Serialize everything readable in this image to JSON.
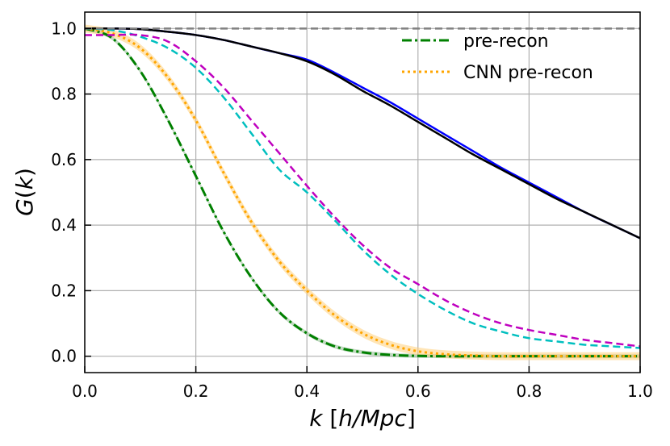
{
  "chart_data": {
    "type": "line",
    "xlabel": {
      "k": "k",
      "open": " [",
      "unit": "h/Mpc",
      "close": "]"
    },
    "ylabel": {
      "g": "G",
      "open": "(",
      "k": "k",
      "close": ")"
    },
    "xlim": [
      0.0,
      1.0
    ],
    "ylim": [
      -0.05,
      1.05
    ],
    "grid": true,
    "legend_position": "top-right",
    "x_ticks": [
      "0.0",
      "0.2",
      "0.4",
      "0.6",
      "0.8",
      "1.0"
    ],
    "y_ticks": [
      "0.0",
      "0.2",
      "0.4",
      "0.6",
      "0.8",
      "1.0"
    ],
    "x_tick_values": [
      0.0,
      0.2,
      0.4,
      0.6,
      0.8,
      1.0
    ],
    "y_tick_values": [
      0.0,
      0.2,
      0.4,
      0.6,
      0.8,
      1.0
    ],
    "legend": [
      {
        "label": "pre-recon",
        "series": 0
      },
      {
        "label": "CNN pre-recon",
        "series": 1
      }
    ],
    "x": [
      0.0,
      0.05,
      0.1,
      0.15,
      0.2,
      0.25,
      0.3,
      0.35,
      0.4,
      0.45,
      0.5,
      0.55,
      0.6,
      0.65,
      0.7,
      0.75,
      0.8,
      0.85,
      0.9,
      0.95,
      1.0
    ],
    "series": [
      {
        "color": "#008000",
        "dash": "12,4,3,4",
        "width": 3,
        "values": [
          1.0,
          0.97,
          0.87,
          0.72,
          0.55,
          0.38,
          0.24,
          0.135,
          0.07,
          0.03,
          0.012,
          0.004,
          0.001,
          0.0,
          0.0,
          0.0,
          0.0,
          0.0,
          0.0,
          0.0,
          0.0
        ],
        "band": 0.006,
        "band_color": "#8fbc8f"
      },
      {
        "color": "#ffa500",
        "dash": "3,4",
        "width": 3,
        "values": [
          1.0,
          0.985,
          0.94,
          0.85,
          0.72,
          0.56,
          0.41,
          0.29,
          0.2,
          0.125,
          0.07,
          0.035,
          0.015,
          0.006,
          0.002,
          0.0,
          0.0,
          0.0,
          0.0,
          0.0,
          0.0
        ],
        "band": 0.012,
        "band_color": "#ffcf7a"
      },
      {
        "color": "#00bfbf",
        "dash": "9,5",
        "width": 2.5,
        "values": [
          1.0,
          0.995,
          0.975,
          0.94,
          0.88,
          0.79,
          0.68,
          0.57,
          0.5,
          0.415,
          0.325,
          0.25,
          0.19,
          0.14,
          0.1,
          0.075,
          0.055,
          0.045,
          0.035,
          0.03,
          0.025
        ]
      },
      {
        "color": "#bf00bf",
        "dash": "9,5",
        "width": 2.5,
        "values": [
          0.98,
          0.98,
          0.98,
          0.96,
          0.9,
          0.82,
          0.72,
          0.62,
          0.52,
          0.425,
          0.34,
          0.27,
          0.22,
          0.17,
          0.13,
          0.1,
          0.08,
          0.065,
          0.05,
          0.04,
          0.03
        ]
      },
      {
        "color": "#0000ff",
        "dash": "",
        "width": 2.5,
        "values": [
          1.0,
          1.0,
          0.998,
          0.99,
          0.98,
          0.965,
          0.945,
          0.925,
          0.905,
          0.865,
          0.82,
          0.775,
          0.725,
          0.675,
          0.625,
          0.575,
          0.53,
          0.485,
          0.44,
          0.4,
          0.36
        ]
      },
      {
        "color": "#000000",
        "dash": "",
        "width": 2.5,
        "values": [
          1.0,
          1.0,
          0.998,
          0.99,
          0.98,
          0.965,
          0.945,
          0.925,
          0.9,
          0.86,
          0.81,
          0.765,
          0.715,
          0.665,
          0.615,
          0.57,
          0.525,
          0.48,
          0.44,
          0.4,
          0.36
        ]
      },
      {
        "color": "#808080",
        "dash": "9,5",
        "width": 2.5,
        "values": [
          1.0,
          1.0,
          1.0,
          1.0,
          1.0,
          1.0,
          1.0,
          1.0,
          1.0,
          1.0,
          1.0,
          1.0,
          1.0,
          1.0,
          1.0,
          1.0,
          1.0,
          1.0,
          1.0,
          1.0,
          1.0
        ]
      }
    ]
  }
}
